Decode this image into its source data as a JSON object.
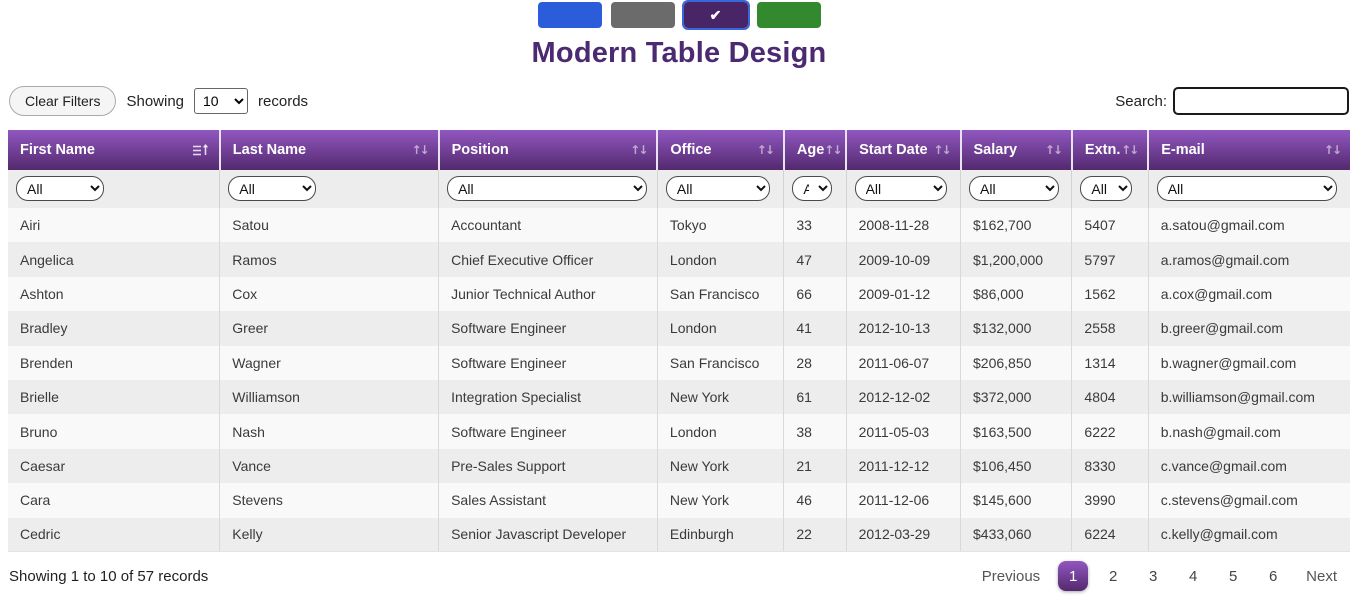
{
  "theme": {
    "header_gradient_top": "#9157c0",
    "header_gradient_bottom": "#53296e",
    "title_color": "#4b2a72",
    "selected_swatch_outline": "#3b66d9"
  },
  "swatches": [
    {
      "name": "blue-theme",
      "color": "#2b5cd9",
      "selected": false
    },
    {
      "name": "gray-theme",
      "color": "#6b6b6b",
      "selected": false
    },
    {
      "name": "purple-theme",
      "color": "#482567",
      "selected": true
    },
    {
      "name": "green-theme",
      "color": "#338a2e",
      "selected": false
    }
  ],
  "check_icon": "✔",
  "title": "Modern Table Design",
  "controls": {
    "clear_filters_label": "Clear Filters",
    "showing_prefix": "Showing",
    "page_size_value": "10",
    "records_suffix": "records",
    "search_label": "Search:",
    "search_value": ""
  },
  "table": {
    "columns": [
      {
        "label": "First Name",
        "icon": "sort-amount-up"
      },
      {
        "label": "Last Name",
        "icon": "sort-both"
      },
      {
        "label": "Position",
        "icon": "sort-both"
      },
      {
        "label": "Office",
        "icon": "sort-both"
      },
      {
        "label": "Age",
        "icon": "sort-both"
      },
      {
        "label": "Start Date",
        "icon": "sort-both"
      },
      {
        "label": "Salary",
        "icon": "sort-both"
      },
      {
        "label": "Extn.",
        "icon": "sort-both"
      },
      {
        "label": "E-mail",
        "icon": "sort-both"
      }
    ],
    "filter_value": "All",
    "rows": [
      [
        "Airi",
        "Satou",
        "Accountant",
        "Tokyo",
        "33",
        "2008-11-28",
        "$162,700",
        "5407",
        "a.satou@gmail.com"
      ],
      [
        "Angelica",
        "Ramos",
        "Chief Executive Officer",
        "London",
        "47",
        "2009-10-09",
        "$1,200,000",
        "5797",
        "a.ramos@gmail.com"
      ],
      [
        "Ashton",
        "Cox",
        "Junior Technical Author",
        "San Francisco",
        "66",
        "2009-01-12",
        "$86,000",
        "1562",
        "a.cox@gmail.com"
      ],
      [
        "Bradley",
        "Greer",
        "Software Engineer",
        "London",
        "41",
        "2012-10-13",
        "$132,000",
        "2558",
        "b.greer@gmail.com"
      ],
      [
        "Brenden",
        "Wagner",
        "Software Engineer",
        "San Francisco",
        "28",
        "2011-06-07",
        "$206,850",
        "1314",
        "b.wagner@gmail.com"
      ],
      [
        "Brielle",
        "Williamson",
        "Integration Specialist",
        "New York",
        "61",
        "2012-12-02",
        "$372,000",
        "4804",
        "b.williamson@gmail.com"
      ],
      [
        "Bruno",
        "Nash",
        "Software Engineer",
        "London",
        "38",
        "2011-05-03",
        "$163,500",
        "6222",
        "b.nash@gmail.com"
      ],
      [
        "Caesar",
        "Vance",
        "Pre-Sales Support",
        "New York",
        "21",
        "2011-12-12",
        "$106,450",
        "8330",
        "c.vance@gmail.com"
      ],
      [
        "Cara",
        "Stevens",
        "Sales Assistant",
        "New York",
        "46",
        "2011-12-06",
        "$145,600",
        "3990",
        "c.stevens@gmail.com"
      ],
      [
        "Cedric",
        "Kelly",
        "Senior Javascript Developer",
        "Edinburgh",
        "22",
        "2012-03-29",
        "$433,060",
        "6224",
        "c.kelly@gmail.com"
      ]
    ]
  },
  "footer": {
    "info": "Showing 1 to 10 of 57 records",
    "pagination": {
      "previous_label": "Previous",
      "pages": [
        "1",
        "2",
        "3",
        "4",
        "5",
        "6"
      ],
      "active_page": "1",
      "next_label": "Next"
    }
  }
}
